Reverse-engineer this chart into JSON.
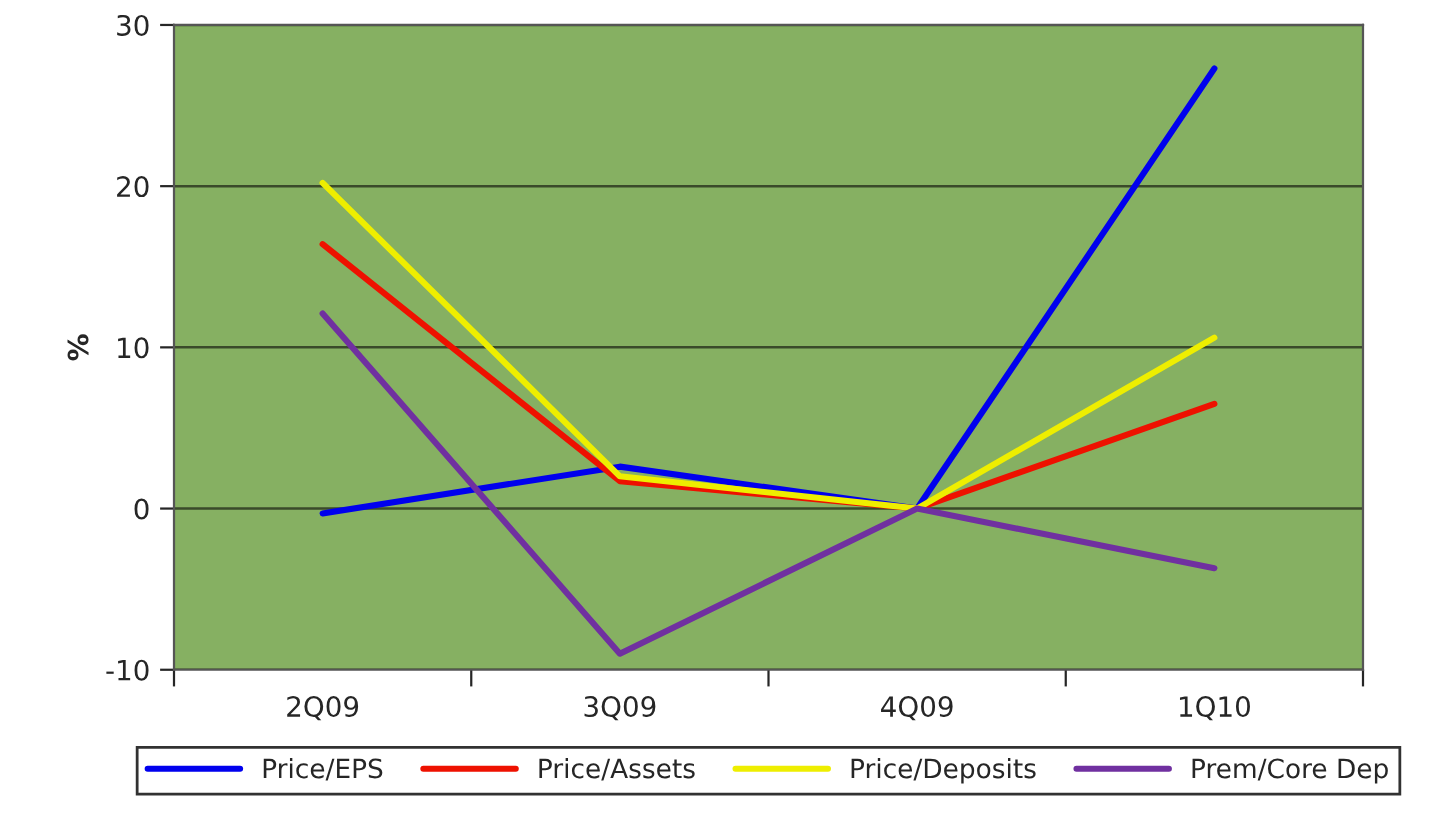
{
  "chart_data": {
    "type": "line",
    "ylabel": "%",
    "categories": [
      "2Q09",
      "3Q09",
      "4Q09",
      "1Q10"
    ],
    "series": [
      {
        "name": "Price/EPS",
        "color": "#0000ee",
        "values": [
          -0.3,
          2.6,
          0,
          27.3
        ]
      },
      {
        "name": "Price/Assets",
        "color": "#ee1100",
        "values": [
          16.4,
          1.7,
          0,
          6.5
        ]
      },
      {
        "name": "Price/Deposits",
        "color": "#eeee00",
        "values": [
          20.2,
          2.0,
          0,
          10.6
        ]
      },
      {
        "name": "Prem/Core Dep",
        "color": "#7030a0",
        "values": [
          12.1,
          -9.0,
          0,
          -3.7
        ]
      }
    ],
    "ylim": [
      -10,
      30
    ],
    "yticks": [
      -10,
      0,
      10,
      20,
      30
    ],
    "grid": "y",
    "legend": "bottom",
    "marker": "none",
    "line_style": "solid"
  }
}
